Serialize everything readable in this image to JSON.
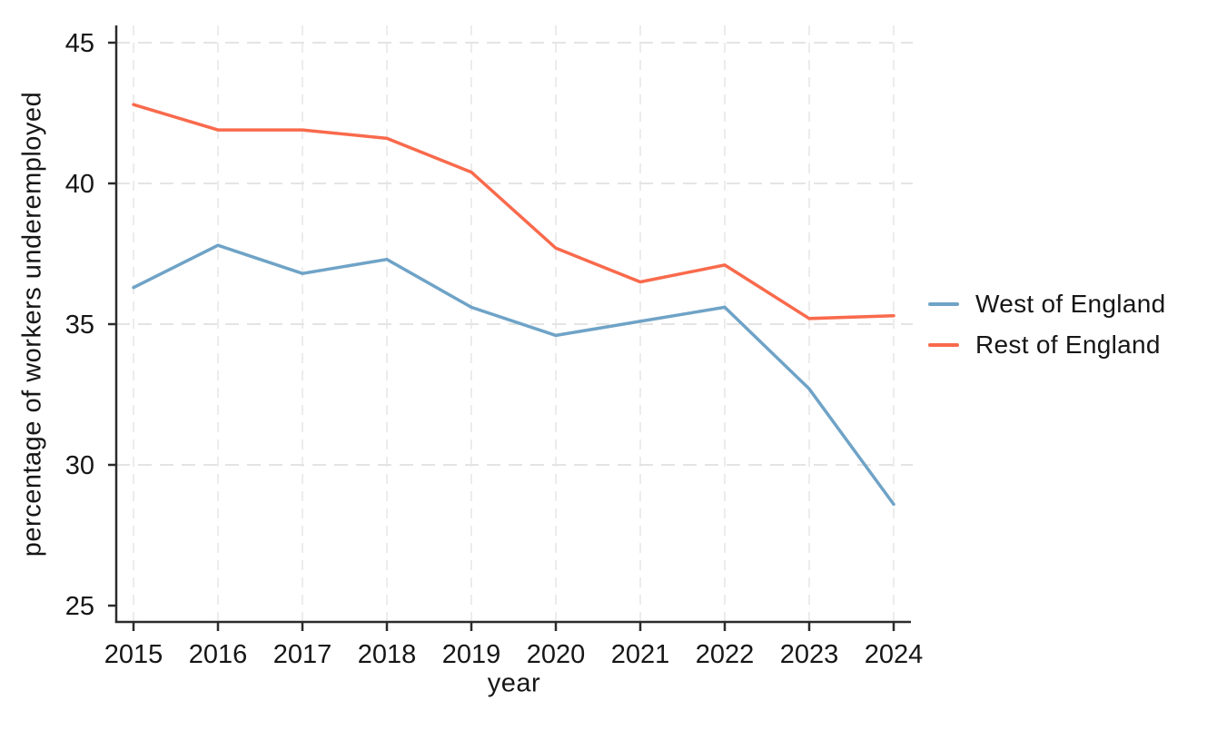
{
  "chart_data": {
    "type": "line",
    "title": "",
    "xlabel": "year",
    "ylabel": "percentage of workers underemployed",
    "x": [
      2015,
      2016,
      2017,
      2018,
      2019,
      2020,
      2021,
      2022,
      2023,
      2024
    ],
    "xtick_labels": [
      "2015",
      "2016",
      "2017",
      "2018",
      "2019",
      "2020",
      "2021",
      "2022",
      "2023",
      "2024"
    ],
    "yticks": [
      25,
      30,
      35,
      40,
      45
    ],
    "ytick_labels": [
      "25",
      "30",
      "35",
      "40",
      "45"
    ],
    "ylim": [
      25,
      45
    ],
    "xlim": [
      2015,
      2024
    ],
    "grid": true,
    "grid_style": "dashed",
    "legend_position": "right",
    "series": [
      {
        "name": "West of England",
        "color": "#6fa3c7",
        "values": [
          36.3,
          37.8,
          36.8,
          37.3,
          35.6,
          34.6,
          35.1,
          35.6,
          32.7,
          28.6
        ]
      },
      {
        "name": "Rest of England",
        "color": "#f96a4c",
        "values": [
          42.8,
          41.9,
          41.9,
          41.6,
          40.4,
          37.7,
          36.5,
          37.1,
          35.2,
          35.3
        ]
      }
    ],
    "style": {
      "axis_color": "#2b2b2b",
      "text_color": "#161616",
      "h_grid_color": "#e4e4e4",
      "v_grid_color": "#ececec",
      "background": "#ffffff"
    }
  }
}
